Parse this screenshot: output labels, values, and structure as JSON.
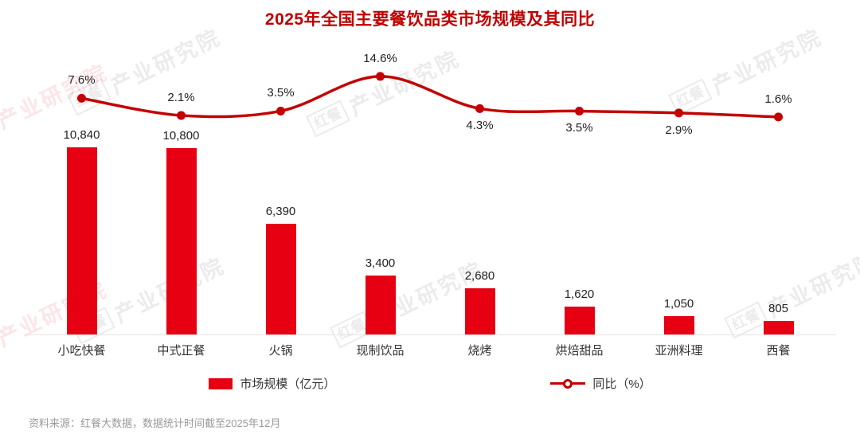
{
  "title": "2025年全国主要餐饮品类市场规模及其同比",
  "chart_data": {
    "type": "bar+line",
    "categories": [
      "小吃快餐",
      "中式正餐",
      "火锅",
      "现制饮品",
      "烧烤",
      "烘焙甜品",
      "亚洲料理",
      "西餐"
    ],
    "series": [
      {
        "name": "市场规模（亿元）",
        "type": "bar",
        "values": [
          10840,
          10800,
          6390,
          3400,
          2680,
          1620,
          1050,
          805
        ],
        "labels": [
          "10,840",
          "10,800",
          "6,390",
          "3,400",
          "2,680",
          "1,620",
          "1,050",
          "805"
        ]
      },
      {
        "name": "同比（%）",
        "type": "line",
        "values": [
          7.6,
          2.1,
          3.5,
          14.6,
          4.3,
          3.5,
          2.9,
          1.6
        ],
        "labels": [
          "7.6%",
          "2.1%",
          "3.5%",
          "14.6%",
          "4.3%",
          "3.5%",
          "2.9%",
          "1.6%"
        ],
        "label_placement": [
          "above",
          "above",
          "above",
          "above",
          "below",
          "below",
          "below",
          "above"
        ]
      }
    ],
    "xlabel": "",
    "ylabel": "",
    "ylim_bar": [
      0,
      10840
    ],
    "ylim_line": [
      0,
      14.6
    ],
    "grid": false,
    "legend_position": "bottom",
    "colors": {
      "bar": "#e60012",
      "line": "#c40000",
      "title": "#c00000",
      "value_label": "#222222",
      "axis": "#e3e3e3",
      "footer": "#999999"
    }
  },
  "legend": {
    "bar_label": "市场规模（亿元）",
    "line_label": "同比（%）"
  },
  "footer": "资料来源：红餐大数据，数据统计时间截至2025年12月",
  "watermark": {
    "logo": "红餐",
    "text": "产业研究院"
  }
}
